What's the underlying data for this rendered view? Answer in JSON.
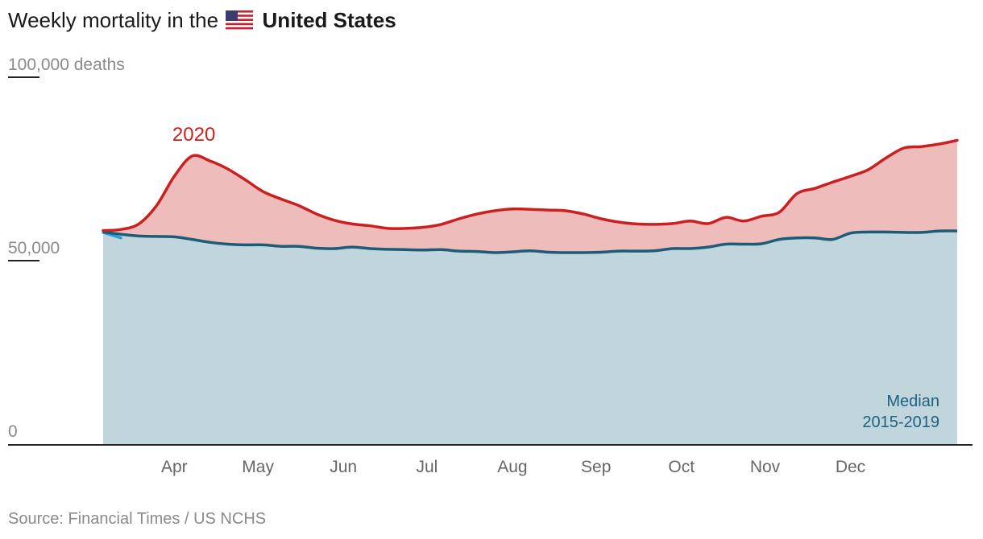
{
  "title": {
    "prefix": "Weekly mortality in the",
    "flag_icon": "us-flag-icon",
    "country": "United States"
  },
  "source": "Source: Financial Times / US NCHS",
  "colors": {
    "excess_fill": "#efbcbc",
    "baseline_fill": "#c1d5dc",
    "line_2020": "#cc1f1f",
    "line_median": "#1c5c78",
    "line_2021": "#2a9fd0",
    "axis": "#222222",
    "label_2020": "#cc1f1f",
    "label_median": "#1c6280",
    "tick_text": "#8a8a8a"
  },
  "chart_data": {
    "type": "area",
    "title": "Weekly mortality in the United States",
    "ylabel": "deaths",
    "ylim": [
      0,
      100000
    ],
    "y_ticks": [
      {
        "value": 100000,
        "label": "100,000 deaths"
      },
      {
        "value": 50000,
        "label": "50,000"
      },
      {
        "value": 0,
        "label": "0"
      }
    ],
    "x_range": [
      0,
      48
    ],
    "month_ticks": [
      {
        "label": "Apr",
        "x": 4.0
      },
      {
        "label": "May",
        "x": 8.7
      },
      {
        "label": "Jun",
        "x": 13.5
      },
      {
        "label": "Jul",
        "x": 18.2
      },
      {
        "label": "Aug",
        "x": 23.0
      },
      {
        "label": "Sep",
        "x": 27.7
      },
      {
        "label": "Oct",
        "x": 32.5
      },
      {
        "label": "Nov",
        "x": 37.2
      },
      {
        "label": "Dec",
        "x": 42.0
      }
    ],
    "series": [
      {
        "name": "2020",
        "label": "2020",
        "x": [
          0,
          1,
          2,
          3,
          4,
          5,
          6,
          7,
          8,
          9,
          10,
          11,
          12,
          13,
          14,
          15,
          16,
          17,
          18,
          19,
          20,
          21,
          22,
          23,
          24,
          25,
          26,
          27,
          28,
          29,
          30,
          31,
          32,
          33,
          34,
          35,
          36,
          37,
          38,
          39,
          40,
          41,
          42,
          43,
          44,
          45,
          46,
          47,
          48
        ],
        "values": [
          58200,
          58500,
          60000,
          65000,
          73000,
          78500,
          77200,
          75000,
          72000,
          68800,
          66800,
          65000,
          62700,
          61000,
          60000,
          59500,
          58800,
          58800,
          59100,
          59900,
          61400,
          62700,
          63600,
          64100,
          64000,
          63800,
          63600,
          62700,
          61400,
          60500,
          60000,
          59900,
          60100,
          60800,
          60100,
          61800,
          60800,
          62100,
          63200,
          68300,
          69700,
          71400,
          73000,
          74800,
          78000,
          80700,
          81100,
          81800,
          82800
        ]
      },
      {
        "name": "Median 2015-2019",
        "label": "Median\n2015-2019",
        "x": [
          0,
          1,
          2,
          3,
          4,
          5,
          6,
          7,
          8,
          9,
          10,
          11,
          12,
          13,
          14,
          15,
          16,
          17,
          18,
          19,
          20,
          21,
          22,
          23,
          24,
          25,
          26,
          27,
          28,
          29,
          30,
          31,
          32,
          33,
          34,
          35,
          36,
          37,
          38,
          39,
          40,
          41,
          42,
          43,
          44,
          45,
          46,
          47,
          48
        ],
        "values": [
          57800,
          57200,
          56700,
          56600,
          56500,
          55800,
          55000,
          54500,
          54300,
          54300,
          53900,
          53900,
          53400,
          53300,
          53700,
          53300,
          53100,
          53000,
          52900,
          53000,
          52600,
          52500,
          52200,
          52400,
          52700,
          52300,
          52200,
          52200,
          52300,
          52600,
          52600,
          52700,
          53300,
          53300,
          53700,
          54500,
          54500,
          54600,
          55800,
          56200,
          56200,
          55800,
          57500,
          57800,
          57800,
          57700,
          57700,
          58100,
          58100
        ]
      },
      {
        "name": "2021",
        "label": "",
        "x": [
          0,
          1
        ],
        "values": [
          57700,
          56200
        ]
      }
    ]
  }
}
